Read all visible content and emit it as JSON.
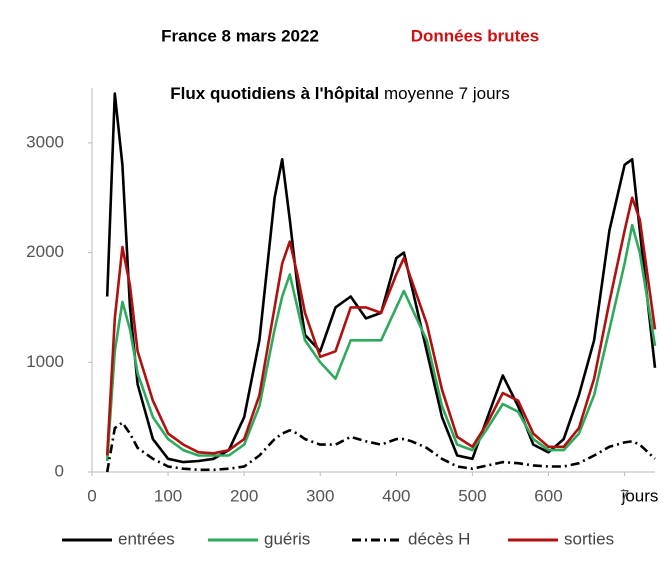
{
  "chart_data": {
    "type": "line",
    "title": "France 8 mars 2022",
    "title_note": "Données brutes",
    "subtitle": "Flux quotidiens à l'hôpital",
    "subtitle_note": "moyenne 7 jours",
    "x_label": "jours",
    "x": [
      20,
      30,
      40,
      50,
      60,
      80,
      100,
      120,
      140,
      160,
      180,
      200,
      220,
      240,
      250,
      260,
      270,
      280,
      300,
      320,
      340,
      360,
      380,
      400,
      410,
      420,
      440,
      460,
      480,
      500,
      520,
      540,
      560,
      580,
      600,
      620,
      640,
      660,
      680,
      700,
      710,
      720,
      740
    ],
    "series": [
      {
        "name": "entrées",
        "color": "#000000",
        "dash": "none",
        "values": [
          1600,
          3450,
          2800,
          1500,
          800,
          300,
          120,
          90,
          100,
          120,
          200,
          500,
          1200,
          2500,
          2850,
          2300,
          1700,
          1250,
          1100,
          1500,
          1600,
          1400,
          1450,
          1950,
          2000,
          1700,
          1100,
          500,
          150,
          120,
          500,
          880,
          600,
          250,
          180,
          300,
          700,
          1200,
          2200,
          2800,
          2850,
          2200,
          950
        ]
      },
      {
        "name": "guéris",
        "color": "#2eaa5c",
        "dash": "none",
        "values": [
          100,
          1100,
          1550,
          1300,
          900,
          500,
          300,
          200,
          150,
          150,
          150,
          250,
          600,
          1300,
          1600,
          1800,
          1500,
          1200,
          1000,
          850,
          1200,
          1200,
          1200,
          1500,
          1650,
          1500,
          1200,
          600,
          250,
          200,
          400,
          620,
          550,
          300,
          200,
          200,
          350,
          700,
          1300,
          1900,
          2250,
          2000,
          1150
        ]
      },
      {
        "name": "décès H",
        "color": "#000000",
        "dash": "9 4 2 4",
        "values": [
          0,
          400,
          450,
          350,
          220,
          120,
          50,
          30,
          20,
          20,
          30,
          50,
          150,
          300,
          350,
          380,
          350,
          300,
          250,
          250,
          320,
          280,
          250,
          300,
          300,
          280,
          220,
          120,
          50,
          30,
          60,
          90,
          80,
          60,
          50,
          50,
          80,
          150,
          230,
          270,
          280,
          250,
          120
        ]
      },
      {
        "name": "sorties",
        "color": "#b01010",
        "dash": "none",
        "values": [
          150,
          1400,
          2050,
          1700,
          1100,
          650,
          350,
          250,
          180,
          170,
          200,
          300,
          700,
          1500,
          1900,
          2100,
          1800,
          1450,
          1050,
          1100,
          1500,
          1500,
          1450,
          1800,
          1950,
          1750,
          1350,
          750,
          320,
          230,
          450,
          720,
          650,
          350,
          230,
          230,
          400,
          850,
          1550,
          2200,
          2500,
          2300,
          1300
        ]
      }
    ],
    "xlim": [
      0,
      740
    ],
    "ylim": [
      0,
      3500
    ],
    "xticks": [
      0,
      100,
      200,
      300,
      400,
      500,
      600,
      {
        "value": 700,
        "label": "7"
      }
    ],
    "yticks": [
      0,
      1000,
      2000,
      3000
    ],
    "legend": "bottom"
  }
}
